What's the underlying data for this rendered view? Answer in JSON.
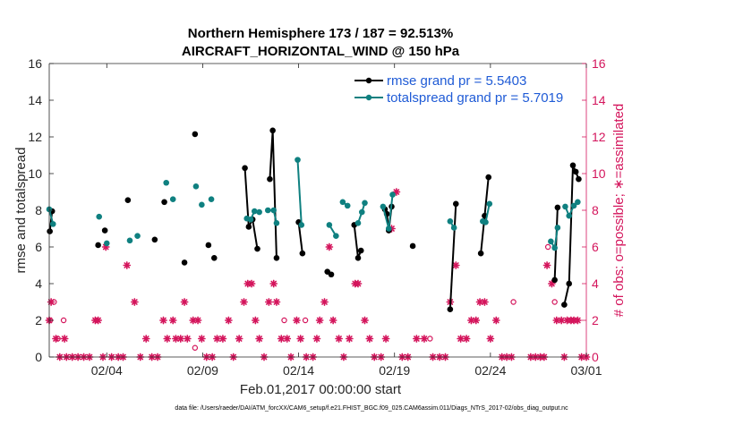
{
  "chart_data": {
    "type": "line",
    "title_line1": "Northern Hemisphere 173 / 187 = 92.513%",
    "title_line2": "AIRCRAFT_HORIZONTAL_WIND @ 150 hPa",
    "xlabel": "Feb.01,2017 00:00:00 start",
    "ylabel_left": "rmse and totalspread",
    "ylabel_right": "# of obs: o=possible; ∗=assimilated",
    "footer": "data file: /Users/raeder/DAI/ATM_forcXX/CAM6_setup/f.e21.FHIST_BGC.f09_025.CAM6assim.011/Diags_NTrS_2017-02/obs_diag_output.nc",
    "xlim": [
      1,
      29
    ],
    "ylim_left": [
      0,
      16
    ],
    "ylim_right": [
      0,
      16
    ],
    "x_ticks": [
      {
        "x": 4,
        "label": "02/04"
      },
      {
        "x": 9,
        "label": "02/09"
      },
      {
        "x": 14,
        "label": "02/14"
      },
      {
        "x": 19,
        "label": "02/19"
      },
      {
        "x": 24,
        "label": "02/24"
      },
      {
        "x": 29,
        "label": "03/01"
      }
    ],
    "y_ticks_left": [
      "0",
      "2",
      "4",
      "6",
      "8",
      "10",
      "12",
      "14",
      "16"
    ],
    "y_ticks_right": [
      "0",
      "2",
      "4",
      "6",
      "8",
      "10",
      "12",
      "14",
      "16"
    ],
    "colors": {
      "rmse": "#000000",
      "spread": "#0f8080",
      "obs": "#d4155c",
      "legend_text": "#1f5bd6",
      "axis": "#262626"
    },
    "series": [
      {
        "name": "rmse",
        "legend": "rmse grand pr = 5.5403",
        "segments": [
          [
            [
              1.03,
              6.85
            ],
            [
              1.15,
              7.95
            ]
          ],
          [
            [
              3.55,
              6.1
            ]
          ],
          [
            [
              3.9,
              6.9
            ]
          ],
          [
            [
              5.1,
              8.55
            ]
          ],
          [
            [
              6.5,
              6.4
            ]
          ],
          [
            [
              7.0,
              8.45
            ]
          ],
          [
            [
              8.05,
              5.15
            ]
          ],
          [
            [
              8.6,
              12.15
            ]
          ],
          [
            [
              9.3,
              6.1
            ]
          ],
          [
            [
              9.6,
              5.4
            ]
          ],
          [
            [
              11.2,
              10.3
            ],
            [
              11.4,
              7.1
            ],
            [
              11.6,
              7.5
            ],
            [
              11.85,
              5.9
            ]
          ],
          [
            [
              12.5,
              9.7
            ],
            [
              12.65,
              12.35
            ],
            [
              12.85,
              5.4
            ]
          ],
          [
            [
              14.0,
              7.35
            ],
            [
              14.2,
              5.65
            ]
          ],
          [
            [
              15.5,
              4.65
            ],
            [
              15.7,
              4.5
            ]
          ],
          [
            [
              16.9,
              7.2
            ],
            [
              17.1,
              5.4
            ],
            [
              17.25,
              5.8
            ]
          ],
          [
            [
              18.5,
              8.05
            ],
            [
              18.6,
              7.8
            ],
            [
              18.7,
              6.9
            ],
            [
              18.85,
              8.2
            ]
          ],
          [
            [
              19.95,
              6.05
            ]
          ],
          [
            [
              21.9,
              2.6
            ],
            [
              22.2,
              8.35
            ]
          ],
          [
            [
              23.5,
              5.65
            ],
            [
              23.7,
              7.7
            ],
            [
              23.9,
              9.8
            ]
          ],
          [
            [
              27.35,
              4.2
            ],
            [
              27.5,
              8.15
            ]
          ],
          [
            [
              27.85,
              2.85
            ],
            [
              28.1,
              4.0
            ],
            [
              28.3,
              10.45
            ],
            [
              28.45,
              10.1
            ],
            [
              28.6,
              9.7
            ]
          ]
        ]
      },
      {
        "name": "totalspread",
        "legend": "totalspread grand pr = 5.7019",
        "segments": [
          [
            [
              1.0,
              8.05
            ],
            [
              1.2,
              7.25
            ]
          ],
          [
            [
              3.6,
              7.65
            ]
          ],
          [
            [
              4.0,
              6.2
            ]
          ],
          [
            [
              5.2,
              6.35
            ]
          ],
          [
            [
              5.6,
              6.6
            ]
          ],
          [
            [
              7.1,
              9.5
            ]
          ],
          [
            [
              7.45,
              8.6
            ]
          ],
          [
            [
              8.65,
              9.3
            ]
          ],
          [
            [
              8.95,
              8.3
            ]
          ],
          [
            [
              9.45,
              8.6
            ]
          ],
          [
            [
              11.3,
              7.55
            ],
            [
              11.5,
              7.5
            ],
            [
              11.7,
              7.95
            ],
            [
              11.95,
              7.9
            ]
          ],
          [
            [
              12.4,
              8.0
            ],
            [
              12.7,
              8.0
            ],
            [
              12.85,
              7.3
            ]
          ],
          [
            [
              13.95,
              10.75
            ],
            [
              14.15,
              7.2
            ]
          ],
          [
            [
              15.6,
              7.2
            ],
            [
              15.95,
              6.6
            ]
          ],
          [
            [
              16.3,
              8.45
            ],
            [
              16.55,
              8.25
            ]
          ],
          [
            [
              17.1,
              7.3
            ],
            [
              17.3,
              7.9
            ],
            [
              17.45,
              8.4
            ]
          ],
          [
            [
              18.4,
              8.2
            ],
            [
              18.7,
              7.0
            ],
            [
              18.9,
              8.85
            ]
          ],
          [
            [
              21.9,
              7.4
            ],
            [
              22.1,
              7.05
            ]
          ],
          [
            [
              23.6,
              7.4
            ],
            [
              23.75,
              7.35
            ],
            [
              23.95,
              8.35
            ]
          ],
          [
            [
              27.15,
              6.3
            ],
            [
              27.35,
              5.95
            ],
            [
              27.5,
              7.05
            ]
          ],
          [
            [
              27.9,
              8.2
            ],
            [
              28.1,
              7.7
            ],
            [
              28.35,
              8.25
            ],
            [
              28.55,
              8.45
            ]
          ]
        ]
      }
    ],
    "obs_possible": [
      [
        1.05,
        2
      ],
      [
        1.25,
        3
      ],
      [
        1.45,
        1
      ],
      [
        1.75,
        2
      ],
      [
        8.6,
        0.5
      ],
      [
        13.25,
        2
      ],
      [
        14.35,
        2
      ],
      [
        20.85,
        1
      ],
      [
        25.2,
        3
      ],
      [
        27.0,
        6
      ],
      [
        27.35,
        3
      ]
    ],
    "obs_assimilated": [
      [
        1.0,
        2
      ],
      [
        1.1,
        3
      ],
      [
        1.35,
        1
      ],
      [
        1.55,
        0
      ],
      [
        1.8,
        1
      ],
      [
        1.9,
        0
      ],
      [
        2.2,
        0
      ],
      [
        2.5,
        0
      ],
      [
        2.8,
        0
      ],
      [
        3.1,
        0
      ],
      [
        3.4,
        2
      ],
      [
        3.55,
        2
      ],
      [
        3.8,
        0
      ],
      [
        3.95,
        6
      ],
      [
        4.25,
        0
      ],
      [
        4.6,
        0
      ],
      [
        4.85,
        0
      ],
      [
        5.05,
        5
      ],
      [
        5.45,
        3
      ],
      [
        5.75,
        0
      ],
      [
        6.05,
        1
      ],
      [
        6.35,
        0
      ],
      [
        6.65,
        0
      ],
      [
        6.95,
        2
      ],
      [
        7.15,
        1
      ],
      [
        7.45,
        2
      ],
      [
        7.6,
        1
      ],
      [
        7.85,
        1
      ],
      [
        8.05,
        3
      ],
      [
        8.2,
        1
      ],
      [
        8.5,
        2
      ],
      [
        8.75,
        2
      ],
      [
        8.95,
        1
      ],
      [
        9.2,
        0
      ],
      [
        9.5,
        0
      ],
      [
        9.75,
        1
      ],
      [
        10.05,
        1
      ],
      [
        10.35,
        2
      ],
      [
        10.6,
        0
      ],
      [
        10.9,
        1
      ],
      [
        11.15,
        3
      ],
      [
        11.35,
        4
      ],
      [
        11.55,
        4
      ],
      [
        11.75,
        2
      ],
      [
        11.95,
        1
      ],
      [
        12.2,
        0
      ],
      [
        12.45,
        3
      ],
      [
        12.7,
        4
      ],
      [
        12.85,
        3
      ],
      [
        13.1,
        1
      ],
      [
        13.4,
        1
      ],
      [
        13.6,
        0
      ],
      [
        13.9,
        2
      ],
      [
        14.1,
        1
      ],
      [
        14.4,
        0
      ],
      [
        14.75,
        0
      ],
      [
        14.95,
        1
      ],
      [
        15.1,
        2
      ],
      [
        15.35,
        3
      ],
      [
        15.6,
        6
      ],
      [
        15.8,
        2
      ],
      [
        16.1,
        1
      ],
      [
        16.35,
        0
      ],
      [
        16.65,
        1
      ],
      [
        16.95,
        4
      ],
      [
        17.1,
        4
      ],
      [
        17.45,
        2
      ],
      [
        17.7,
        1
      ],
      [
        17.95,
        0
      ],
      [
        18.3,
        0
      ],
      [
        18.55,
        1
      ],
      [
        18.85,
        7
      ],
      [
        19.1,
        9
      ],
      [
        19.4,
        0
      ],
      [
        19.7,
        0
      ],
      [
        20.15,
        1
      ],
      [
        20.55,
        1
      ],
      [
        21.0,
        0
      ],
      [
        21.35,
        0
      ],
      [
        21.65,
        0
      ],
      [
        21.9,
        3
      ],
      [
        22.2,
        5
      ],
      [
        22.45,
        1
      ],
      [
        22.75,
        1
      ],
      [
        23.0,
        2
      ],
      [
        23.25,
        2
      ],
      [
        23.45,
        3
      ],
      [
        23.7,
        3
      ],
      [
        24.0,
        1
      ],
      [
        24.3,
        2
      ],
      [
        24.6,
        0
      ],
      [
        24.85,
        0
      ],
      [
        25.1,
        0
      ],
      [
        26.1,
        0
      ],
      [
        26.35,
        0
      ],
      [
        26.6,
        0
      ],
      [
        26.8,
        0
      ],
      [
        26.95,
        5
      ],
      [
        27.2,
        4
      ],
      [
        27.45,
        2
      ],
      [
        27.7,
        2
      ],
      [
        27.85,
        0
      ],
      [
        28.0,
        2
      ],
      [
        28.2,
        2
      ],
      [
        28.35,
        2
      ],
      [
        28.55,
        2
      ],
      [
        28.75,
        0
      ],
      [
        29.0,
        0
      ]
    ]
  }
}
